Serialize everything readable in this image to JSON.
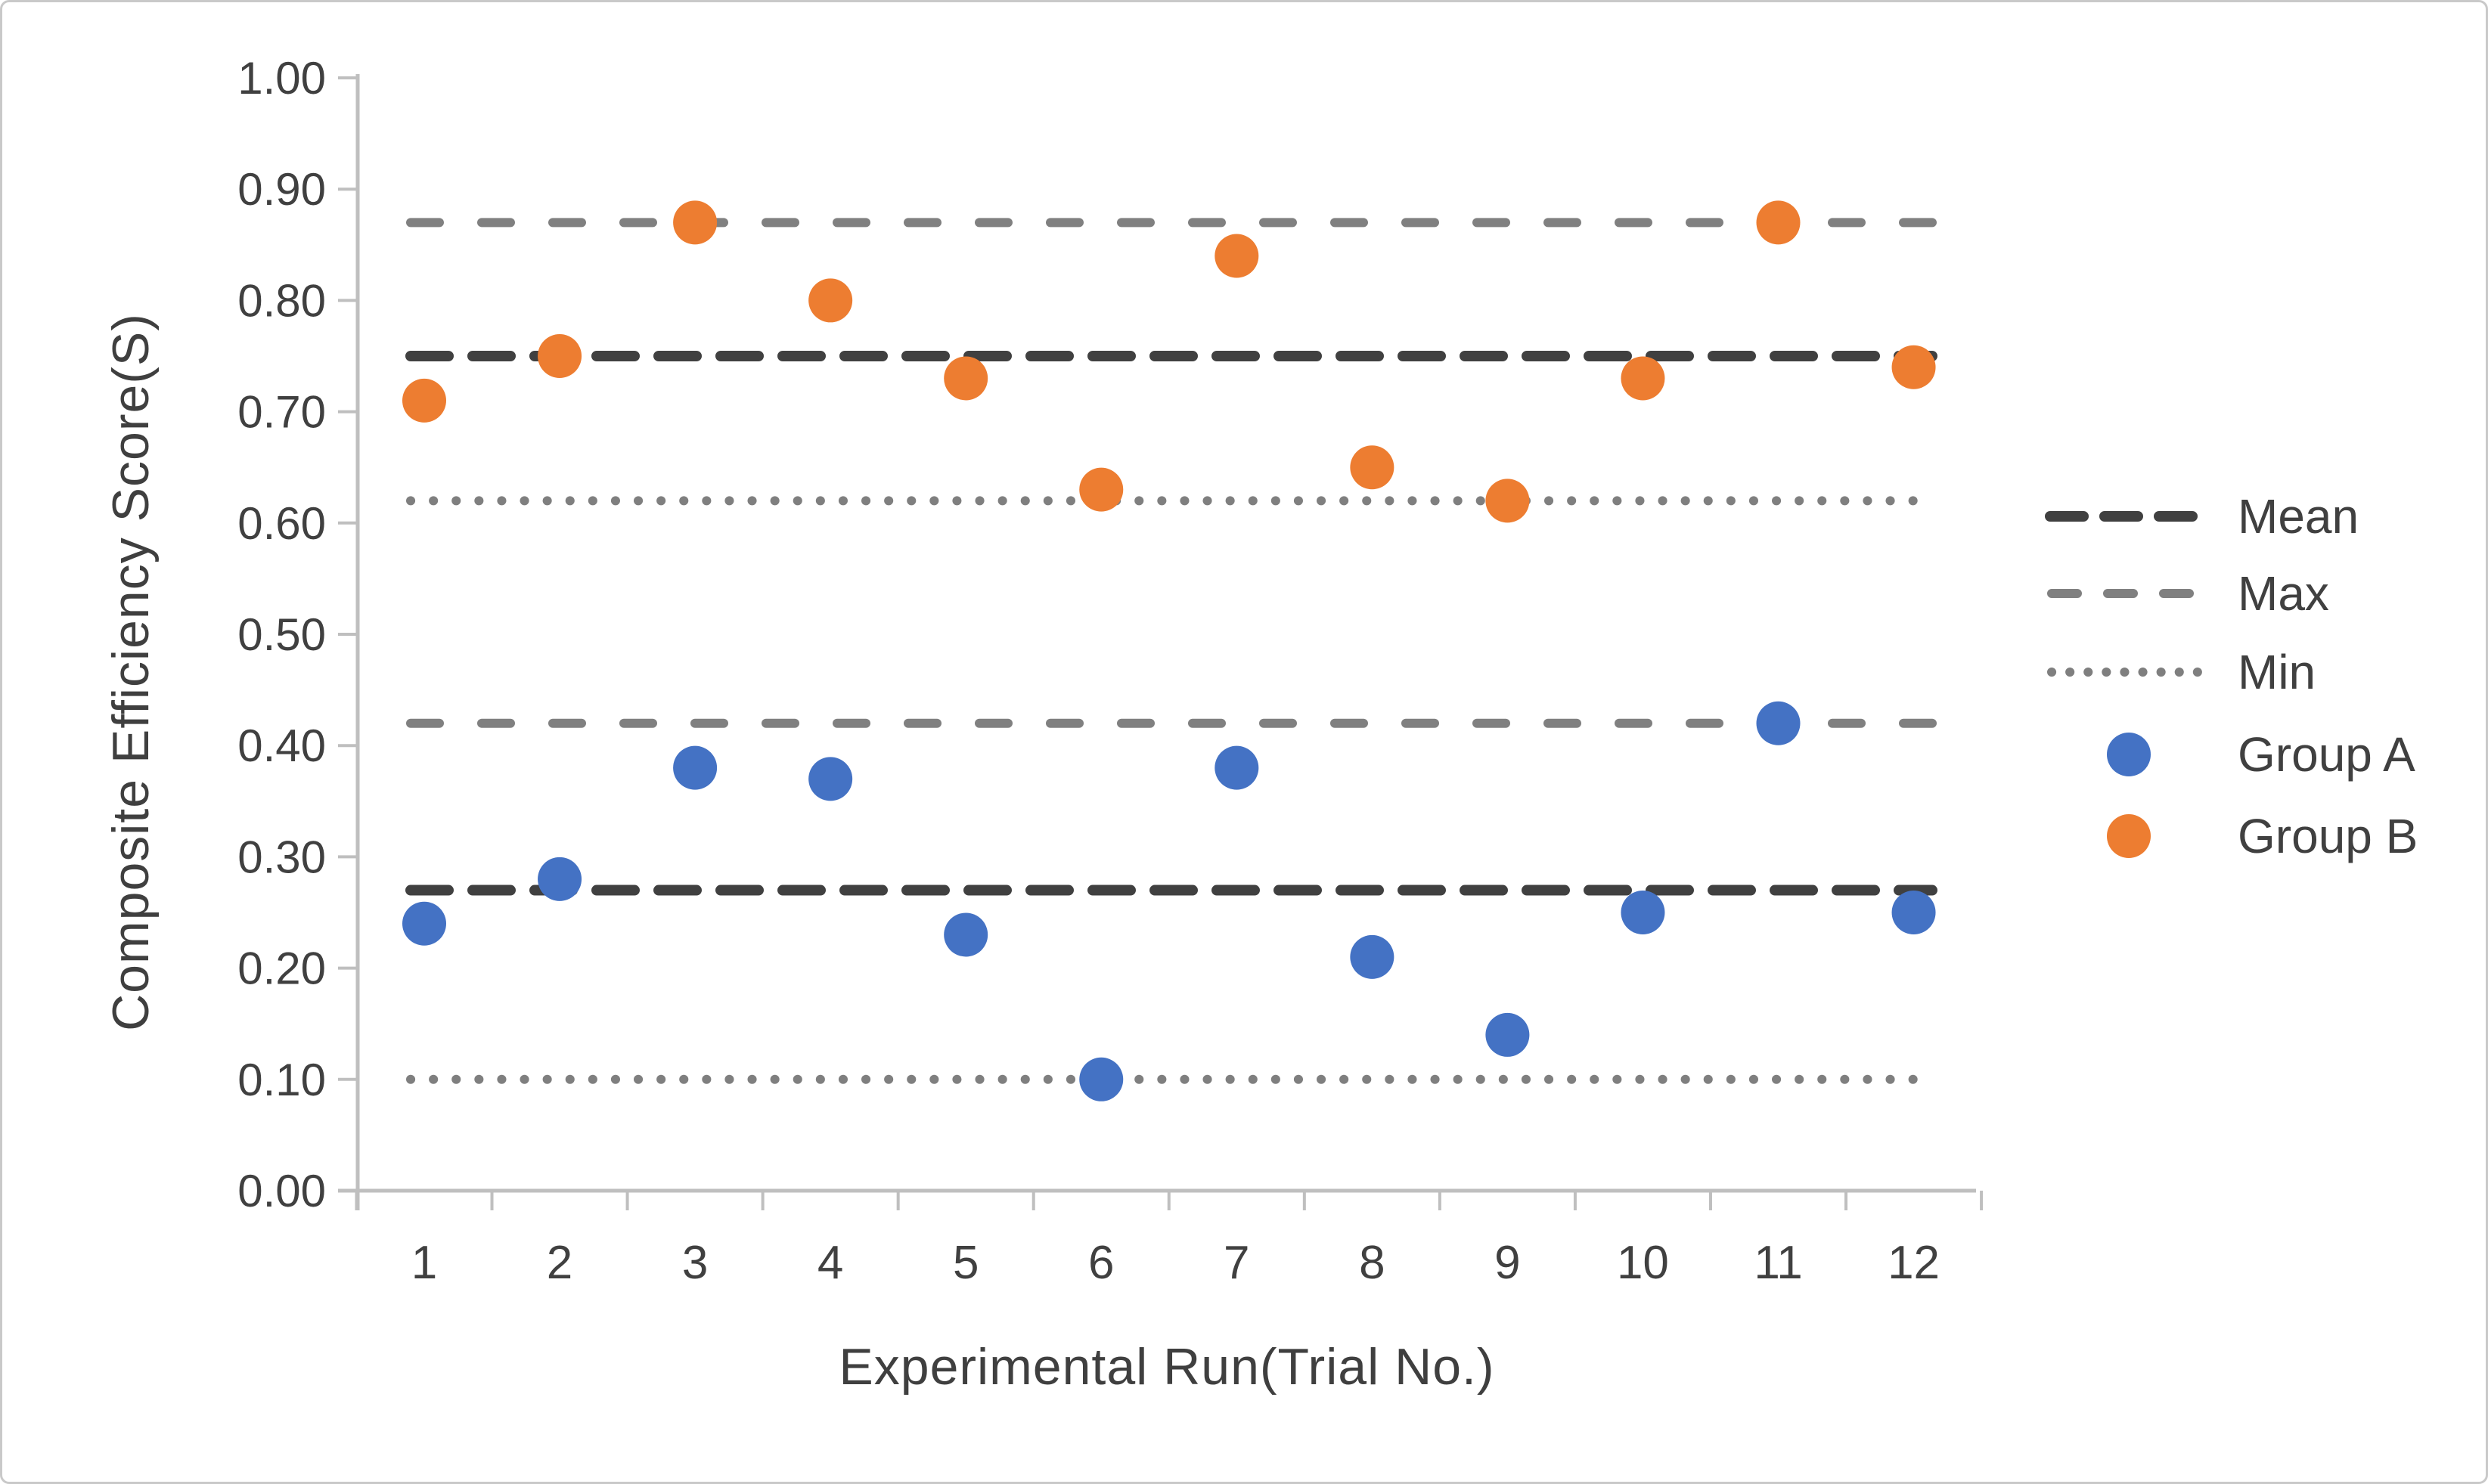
{
  "chart_data": {
    "type": "scatter",
    "title": "",
    "xlabel": "Experimental Run(Trial No.)",
    "ylabel": "Composite Efficiency Score(S)",
    "x": [
      1,
      2,
      3,
      4,
      5,
      6,
      7,
      8,
      9,
      10,
      11,
      12
    ],
    "x_tick_labels": [
      "1",
      "2",
      "3",
      "4",
      "5",
      "6",
      "7",
      "8",
      "9",
      "10",
      "11",
      "12"
    ],
    "ylim": [
      0.0,
      1.0
    ],
    "y_tick_step": 0.1,
    "y_tick_labels": [
      "0.00",
      "0.10",
      "0.20",
      "0.30",
      "0.40",
      "0.50",
      "0.60",
      "0.70",
      "0.80",
      "0.90",
      "1.00"
    ],
    "grid": false,
    "series": [
      {
        "name": "Group A",
        "color": "#4472C4",
        "values": [
          0.24,
          0.28,
          0.38,
          0.37,
          0.23,
          0.1,
          0.38,
          0.21,
          0.14,
          0.25,
          0.42,
          0.25
        ]
      },
      {
        "name": "Group B",
        "color": "#ED7D31",
        "values": [
          0.71,
          0.75,
          0.87,
          0.8,
          0.73,
          0.63,
          0.84,
          0.65,
          0.62,
          0.73,
          0.87,
          0.74
        ]
      }
    ],
    "reference_lines": [
      {
        "label": "Mean",
        "style": "dash-dark",
        "color": "#404040",
        "levels": [
          {
            "series": "Group A",
            "value": 0.27
          },
          {
            "series": "Group B",
            "value": 0.75
          }
        ]
      },
      {
        "label": "Max",
        "style": "dash-gray",
        "color": "#808080",
        "levels": [
          {
            "series": "Group A",
            "value": 0.42
          },
          {
            "series": "Group B",
            "value": 0.87
          }
        ]
      },
      {
        "label": "Min",
        "style": "dotted-gray",
        "color": "#7F7F7F",
        "levels": [
          {
            "series": "Group A",
            "value": 0.1
          },
          {
            "series": "Group B",
            "value": 0.62
          }
        ]
      }
    ],
    "legend": {
      "position": "right",
      "entries": [
        "Mean",
        "Max",
        "Min",
        "Group A",
        "Group B"
      ]
    },
    "axis_color": "#BFBFBF",
    "text_color": "#404040"
  }
}
